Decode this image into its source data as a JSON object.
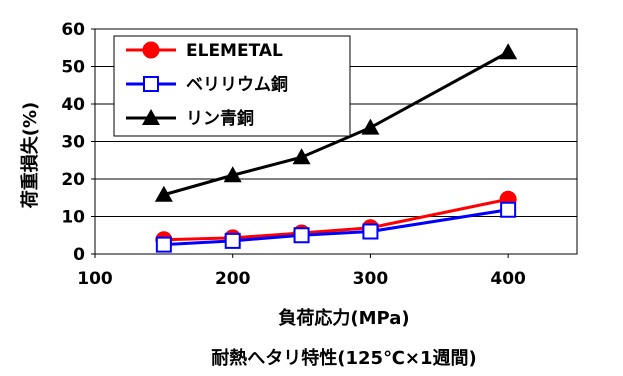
{
  "chart_data": {
    "type": "line",
    "title": "",
    "caption": "耐熱へタリ特性(125℃×1週間)",
    "xlabel": "負荷応力(MPa)",
    "ylabel": "荷重損失(%)",
    "xlim": [
      100,
      450
    ],
    "ylim": [
      0,
      60
    ],
    "x_ticks": [
      "100",
      "200",
      "300",
      "400"
    ],
    "y_ticks": [
      "0",
      "10",
      "20",
      "30",
      "40",
      "50",
      "60"
    ],
    "x_tick_values": [
      100,
      200,
      300,
      400
    ],
    "y_tick_values": [
      0,
      10,
      20,
      30,
      40,
      50,
      60
    ],
    "grid": "horizontal",
    "legend_position": "top-left",
    "x": [
      150,
      200,
      250,
      300,
      400
    ],
    "series": [
      {
        "name": "ELEMETAL",
        "values": [
          3.8,
          4.3,
          5.6,
          7.0,
          14.6
        ],
        "color": "#ff0000",
        "marker": "circle"
      },
      {
        "name": "ベリリウム銅",
        "values": [
          2.5,
          3.5,
          5.0,
          6.0,
          11.8
        ],
        "color": "#0000ff",
        "marker": "square"
      },
      {
        "name": "リン青銅",
        "values": [
          15.8,
          21.0,
          25.8,
          33.7,
          53.8
        ],
        "color": "#000000",
        "marker": "triangle"
      }
    ]
  }
}
